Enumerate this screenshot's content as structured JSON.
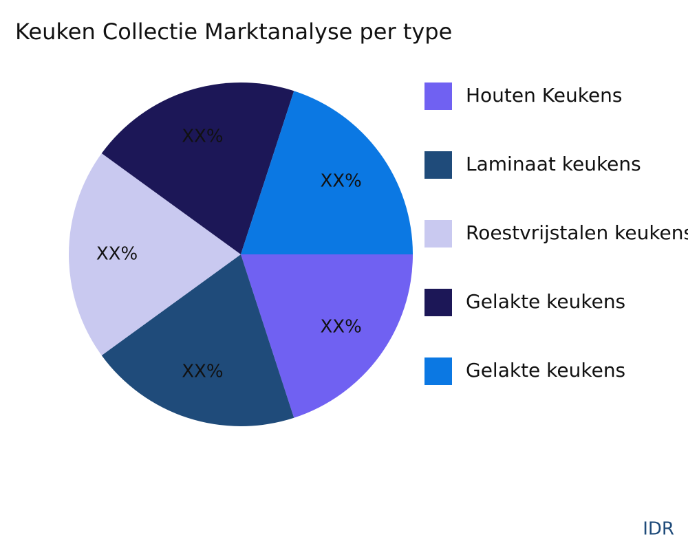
{
  "chart_data": {
    "type": "pie",
    "title": "Keuken Collectie Marktanalyse per type",
    "categories": [
      "Houten Keukens",
      "Laminaat keukens",
      "Roestvrijstalen keukens",
      "Gelakte keukens",
      "Gelakte keukens"
    ],
    "values": [
      20,
      20,
      20,
      20,
      20
    ],
    "value_labels": [
      "XX%",
      "XX%",
      "XX%",
      "XX%",
      "XX%"
    ],
    "colors": [
      "#7061f2",
      "#1f4b7a",
      "#c9c9f0",
      "#1c1757",
      "#0b78e3"
    ],
    "legend": "right",
    "brand": "IDR"
  }
}
